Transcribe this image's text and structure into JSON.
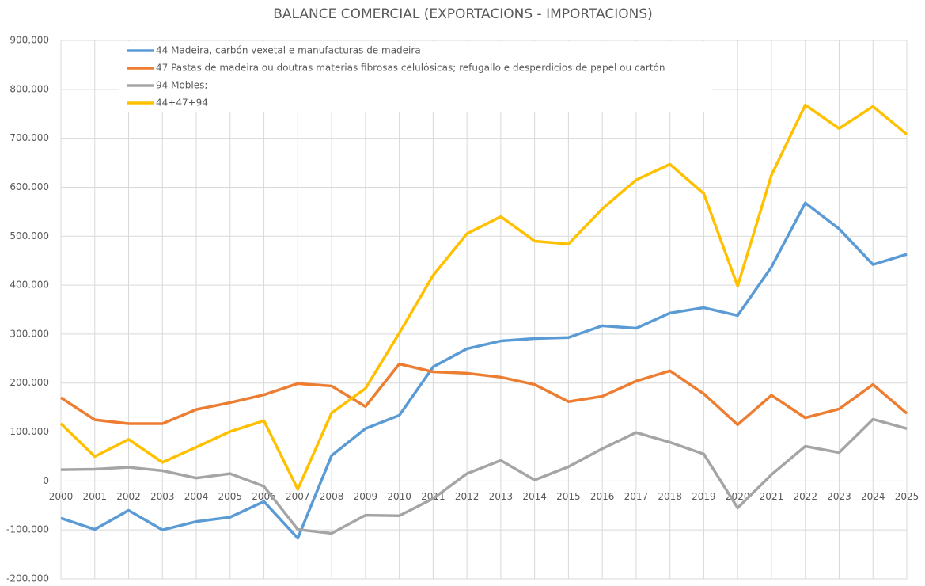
{
  "chart_data": {
    "type": "line",
    "title": "BALANCE COMERCIAL (EXPORTACIONS - IMPORTACIONS)",
    "categories": [
      "2000",
      "2001",
      "2002",
      "2003",
      "2004",
      "2005",
      "2006",
      "2007",
      "2008",
      "2009",
      "2010",
      "2011",
      "2012",
      "2013",
      "2014",
      "2015",
      "2016",
      "2017",
      "2018",
      "2019",
      "2020",
      "2021",
      "2022",
      "2023",
      "2024",
      "2025"
    ],
    "series": [
      {
        "name": "44 Madeira, carbón vexetal e manufacturas de madeira",
        "color": "#5b9bd5",
        "values": [
          -76000,
          -99000,
          -60000,
          -100000,
          -83000,
          -74000,
          -42000,
          -117000,
          52000,
          107000,
          134000,
          233000,
          270000,
          286000,
          291000,
          293000,
          317000,
          312000,
          343000,
          354000,
          338000,
          437000,
          568000,
          515000,
          442000,
          463000
        ]
      },
      {
        "name": "47 Pastas de madeira ou doutras materias fibrosas celulósicas; refugallo e desperdicios de papel ou cartón",
        "color": "#ed7d31",
        "values": [
          170000,
          125000,
          117000,
          117000,
          146000,
          160000,
          176000,
          199000,
          194000,
          152000,
          239000,
          223000,
          220000,
          212000,
          197000,
          162000,
          173000,
          204000,
          225000,
          178000,
          115000,
          175000,
          129000,
          147000,
          197000,
          138000
        ]
      },
      {
        "name": "94 Mobles;",
        "color": "#a5a5a5",
        "values": [
          23000,
          24000,
          28000,
          21000,
          6000,
          15000,
          -11000,
          -99000,
          -107000,
          -70000,
          -71000,
          -36000,
          15000,
          42000,
          2000,
          29000,
          66000,
          99000,
          79000,
          55000,
          -55000,
          13000,
          71000,
          58000,
          126000,
          107000
        ]
      },
      {
        "name": "44+47+94",
        "color": "#ffc000",
        "values": [
          117000,
          50000,
          85000,
          38000,
          69000,
          101000,
          123000,
          -17000,
          139000,
          189000,
          302000,
          420000,
          505000,
          540000,
          490000,
          484000,
          556000,
          615000,
          647000,
          587000,
          398000,
          625000,
          768000,
          720000,
          765000,
          708000
        ]
      }
    ],
    "ylim": [
      -200000,
      900000
    ],
    "yticks": [
      {
        "value": -200000,
        "label": "-200.000"
      },
      {
        "value": -100000,
        "label": "-100.000"
      },
      0,
      {
        "value": 100000,
        "label": "100.000"
      },
      {
        "value": 200000,
        "label": "200.000"
      },
      {
        "value": 300000,
        "label": "300.000"
      },
      {
        "value": 400000,
        "label": "400.000"
      },
      {
        "value": 500000,
        "label": "500.000"
      },
      {
        "value": 600000,
        "label": "600.000"
      },
      {
        "value": 700000,
        "label": "700.000"
      },
      {
        "value": 800000,
        "label": "800.000"
      },
      {
        "value": 900000,
        "label": "900.000"
      }
    ],
    "grid": true,
    "legend": "top-left"
  }
}
